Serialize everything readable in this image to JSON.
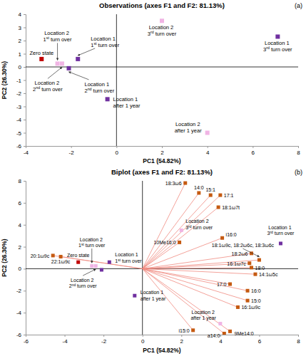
{
  "chart_data": [
    {
      "type": "scatter",
      "title": "Observations (axes F1 and F2: 81.13%)",
      "subtitle": "(a)",
      "x_label": "PC1 (54.82%)",
      "y_label": "PC2 (26.30%)",
      "xlim": [
        -4,
        8
      ],
      "xticks": [
        -4,
        -2,
        0,
        2,
        4,
        6,
        8
      ],
      "ylim": [
        -6,
        4
      ],
      "yticks": [
        -6,
        -5,
        -4,
        -3,
        -2,
        -1,
        0,
        1,
        2,
        3,
        4
      ],
      "series": [
        {
          "name": "Zero state",
          "color": "#c00000",
          "marker": "square",
          "x": [
            -3.3
          ],
          "values": [
            0.6
          ]
        },
        {
          "name": "Location 2 1st turn over",
          "color": "#f0b4e4",
          "marker": "square",
          "x": [
            -2.6
          ],
          "values": [
            0.25
          ]
        },
        {
          "name": "Location 2 2nd turn over",
          "color": "#f0b4e4",
          "marker": "square",
          "x": [
            -2.4
          ],
          "values": [
            0.25
          ]
        },
        {
          "name": "Location 1 1st turn over",
          "color": "#7030a0",
          "marker": "square",
          "x": [
            -1.7
          ],
          "values": [
            0.6
          ]
        },
        {
          "name": "Location 1 2nd turn over",
          "color": "#7030a0",
          "marker": "square",
          "x": [
            -2.1
          ],
          "values": [
            -0.1
          ]
        },
        {
          "name": "Location 1 after 1 year",
          "color": "#7030a0",
          "marker": "square",
          "x": [
            -0.4
          ],
          "values": [
            -2.45
          ]
        },
        {
          "name": "Location 2 3rd turn over",
          "color": "#f0b4e4",
          "marker": "square",
          "x": [
            2.0
          ],
          "values": [
            3.5
          ]
        },
        {
          "name": "Location 1 3rd turn over",
          "color": "#7030a0",
          "marker": "square",
          "x": [
            7.1
          ],
          "values": [
            2.3
          ]
        },
        {
          "name": "Location 2 after 1 year",
          "color": "#f0b4e4",
          "marker": "square",
          "x": [
            4.0
          ],
          "values": [
            -5.0
          ]
        }
      ]
    },
    {
      "type": "scatter",
      "title": "Biplot (axes F1 and F2: 81.13%)",
      "subtitle": "(b)",
      "x_label": "PC1 (54.82%)",
      "y_label": "PC2 (26.30%)",
      "xlim": [
        -6,
        8
      ],
      "xticks": [
        -6,
        -4,
        -2,
        0,
        2,
        4,
        6,
        8
      ],
      "ylim": [
        -6,
        8
      ],
      "yticks": [
        -6,
        -4,
        -2,
        0,
        2,
        4,
        6,
        8
      ],
      "series": [
        {
          "name": "Zero state",
          "color": "#c00000",
          "marker": "square",
          "x": [
            -3.3
          ],
          "values": [
            0.6
          ]
        },
        {
          "name": "Location 2 1st turn over",
          "color": "#f0b4e4",
          "marker": "square",
          "x": [
            -2.6
          ],
          "values": [
            0.25
          ]
        },
        {
          "name": "Location 2 2nd turn over",
          "color": "#f0b4e4",
          "marker": "square",
          "x": [
            -2.4
          ],
          "values": [
            0.25
          ]
        },
        {
          "name": "Location 1 1st turn over",
          "color": "#7030a0",
          "marker": "square",
          "x": [
            -1.7
          ],
          "values": [
            0.6
          ]
        },
        {
          "color": "#7030a0",
          "marker": "square",
          "x": [
            -2.1
          ],
          "values": [
            -0.1
          ]
        },
        {
          "name": "Location 1 after 1 year",
          "color": "#7030a0",
          "marker": "square",
          "x": [
            -0.4
          ],
          "values": [
            -2.45
          ]
        },
        {
          "name": "Location 2 3rd turn over",
          "color": "#f0b4e4",
          "marker": "square",
          "x": [
            2.0
          ],
          "values": [
            3.5
          ]
        },
        {
          "name": "Location 1 3rd turn over",
          "color": "#7030a0",
          "marker": "square",
          "x": [
            7.1
          ],
          "values": [
            2.3
          ]
        },
        {
          "name": "Location 2 after 1 year",
          "color": "#f0b4e4",
          "marker": "square",
          "x": [
            4.0
          ],
          "values": [
            -5.0
          ]
        },
        {
          "type": "vector",
          "color": "#c55a11",
          "marker": "square",
          "point_labels": [
            "18:3ω6",
            "14:0",
            "15:1",
            "17:1",
            "18:1ω7t",
            "10Me16:0",
            "i16:0",
            "18:1ω9c, 18:2ω6c, 18:3ω6c",
            "18:2ω6",
            "16:1ω7c",
            "18:0",
            "14:1ω5c",
            "17:0",
            "16:0",
            "15:0",
            "16:1ω9c",
            "a14:0",
            "9Me14:0",
            "i15:0",
            "20:1ω9c",
            "22:1ω9c"
          ],
          "x": [
            2.2,
            2.9,
            3.5,
            4.0,
            3.9,
            1.9,
            4.1,
            6.0,
            5.6,
            5.5,
            5.6,
            5.8,
            4.5,
            5.4,
            5.4,
            4.9,
            4.2,
            4.5,
            2.6,
            -4.6,
            -4.2
          ],
          "values": [
            7.8,
            6.9,
            6.7,
            6.7,
            5.6,
            2.4,
            2.8,
            0.8,
            1.4,
            0.5,
            0.1,
            -0.5,
            -1.4,
            -2.0,
            -2.9,
            -3.5,
            -5.9,
            -5.7,
            -5.6,
            1.2,
            1.1
          ]
        }
      ]
    }
  ]
}
